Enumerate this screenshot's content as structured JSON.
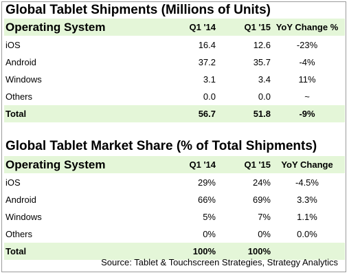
{
  "section1": {
    "title": "Global Tablet Shipments (Millions of Units)",
    "header": [
      "Operating System",
      "Q1 '14",
      "Q1 '15",
      "YoY Change %"
    ],
    "rows": [
      {
        "os": "iOS",
        "q1_14": "16.4",
        "q1_15": "12.6",
        "change": "-23%"
      },
      {
        "os": "Android",
        "q1_14": "37.2",
        "q1_15": "35.7",
        "change": "-4%"
      },
      {
        "os": "Windows",
        "q1_14": "3.1",
        "q1_15": "3.4",
        "change": "11%"
      },
      {
        "os": "Others",
        "q1_14": "0.0",
        "q1_15": "0.0",
        "change": "~"
      }
    ],
    "total": {
      "os": "Total",
      "q1_14": "56.7",
      "q1_15": "51.8",
      "change": "-9%"
    }
  },
  "section2": {
    "title": "Global Tablet Market Share (% of Total Shipments)",
    "header": [
      "Operating System",
      "Q1 '14",
      "Q1 '15",
      "YoY Change"
    ],
    "rows": [
      {
        "os": "iOS",
        "q1_14": "29%",
        "q1_15": "24%",
        "change": "-4.5%"
      },
      {
        "os": "Android",
        "q1_14": "66%",
        "q1_15": "69%",
        "change": "3.3%"
      },
      {
        "os": "Windows",
        "q1_14": "5%",
        "q1_15": "7%",
        "change": "1.1%"
      },
      {
        "os": "Others",
        "q1_14": "0%",
        "q1_15": "0%",
        "change": "0.0%"
      }
    ],
    "total": {
      "os": "Total",
      "q1_14": "100%",
      "q1_15": "100%",
      "change": ""
    }
  },
  "source": "Source: Tablet & Touchscreen Strategies, Strategy Analytics",
  "colors": {
    "header_bg": "#e4f6d8",
    "border": "#9a9a9a"
  }
}
